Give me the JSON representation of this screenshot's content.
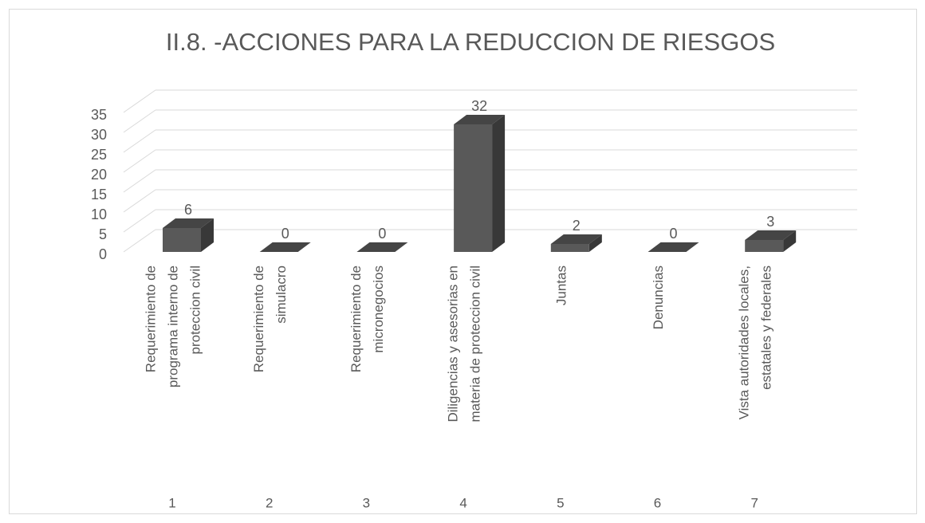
{
  "chart_data": {
    "type": "bar3d",
    "title": "II.8. -ACCIONES PARA LA REDUCCION DE RIESGOS",
    "categories": [
      [
        "Requerimiento de",
        "programa interno de",
        "proteccion civil"
      ],
      [
        "Requerimiento de",
        "simulacro"
      ],
      [
        "Requerimiento de",
        "micronegocios"
      ],
      [
        "Diligencias y asesorias en",
        "materia de proteccion civil"
      ],
      [
        "Juntas"
      ],
      [
        "Denuncias"
      ],
      [
        "Vista autoridades locales,",
        "estatales y federales"
      ]
    ],
    "category_groups": [
      "1",
      "2",
      "3",
      "4",
      "5",
      "6",
      "7"
    ],
    "values": [
      6,
      0,
      0,
      32,
      2,
      0,
      3
    ],
    "color": "#595959",
    "ylim": [
      0,
      35
    ],
    "yticks": [
      0,
      5,
      10,
      15,
      20,
      25,
      30,
      35
    ],
    "grid": true
  }
}
